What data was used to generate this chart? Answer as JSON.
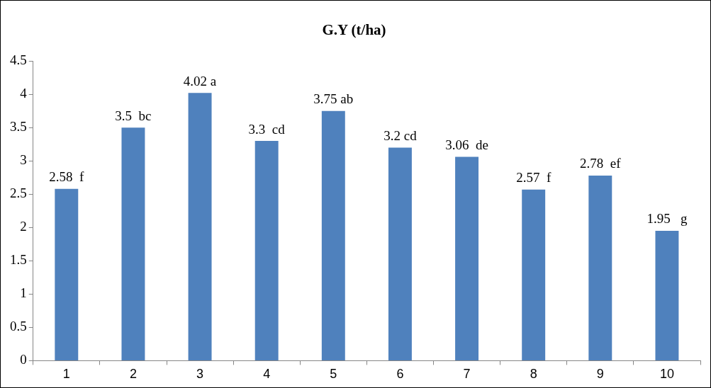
{
  "chart_data": {
    "type": "bar",
    "title": "G.Y (t/ha)",
    "categories": [
      "1",
      "2",
      "3",
      "4",
      "5",
      "6",
      "7",
      "8",
      "9",
      "10"
    ],
    "values": [
      2.58,
      3.5,
      4.02,
      3.3,
      3.75,
      3.2,
      3.06,
      2.57,
      2.78,
      1.95
    ],
    "value_labels": [
      "2.58  f",
      "3.5  bc",
      "4.02 a",
      "3.3  cd",
      "3.75 ab",
      "3.2 cd",
      "3.06  de",
      "2.57  f",
      "2.78  ef",
      "1.95   g"
    ],
    "color": "#4f81bd",
    "ylim": [
      0,
      4.5
    ],
    "yticks": [
      0,
      0.5,
      1,
      1.5,
      2,
      2.5,
      3,
      3.5,
      4,
      4.5
    ],
    "grid": false,
    "legend": false
  }
}
